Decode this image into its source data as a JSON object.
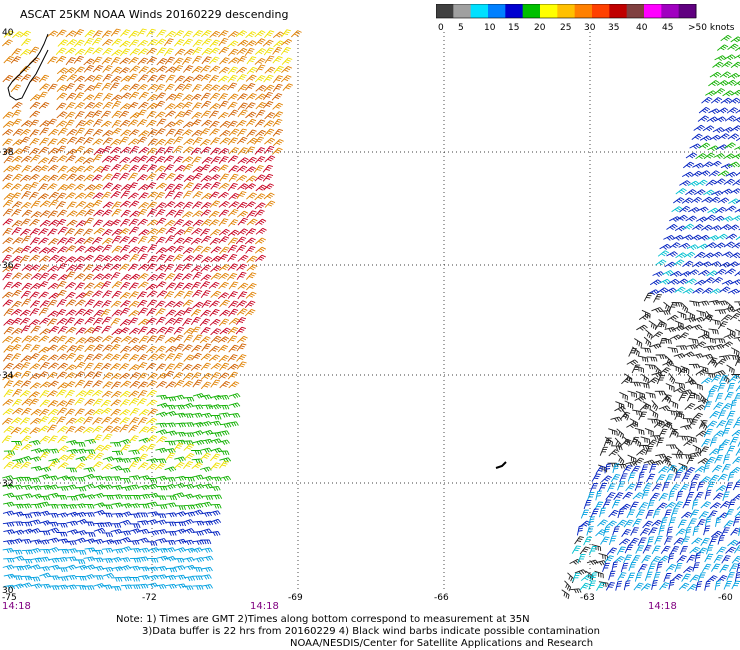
{
  "title": "ASCAT 25KM NOAA Winds 20160229 descending",
  "scale": {
    "colors": [
      "#404040",
      "#a0a0a0",
      "#00e0ff",
      "#0080ff",
      "#0000d0",
      "#00c000",
      "#ffff00",
      "#ffc000",
      "#ff8000",
      "#ff4000",
      "#c00000",
      "#804040",
      "#ff00ff",
      "#a000c0",
      "#600080"
    ],
    "labels": [
      "0",
      "5",
      "10",
      "15",
      "20",
      "25",
      "30",
      "35",
      "40",
      "45",
      ">50 knots"
    ]
  },
  "lat_labels": [
    "40",
    "38",
    "36",
    "34",
    "32",
    "30"
  ],
  "lon_labels": [
    "-75",
    "-72",
    "-69",
    "-66",
    "-63",
    "-60"
  ],
  "time_labels": [
    "14:18",
    "14:18",
    "14:18"
  ],
  "notes": {
    "line1": "Note: 1) Times are GMT 2)Times along bottom correspond to measurement at 35N",
    "line2": "3)Data buffer is 22 hrs from 20160229 4) Black wind barbs indicate possible contamination",
    "line3": "NOAA/NESDIS/Center for Satellite Applications and Research"
  }
}
